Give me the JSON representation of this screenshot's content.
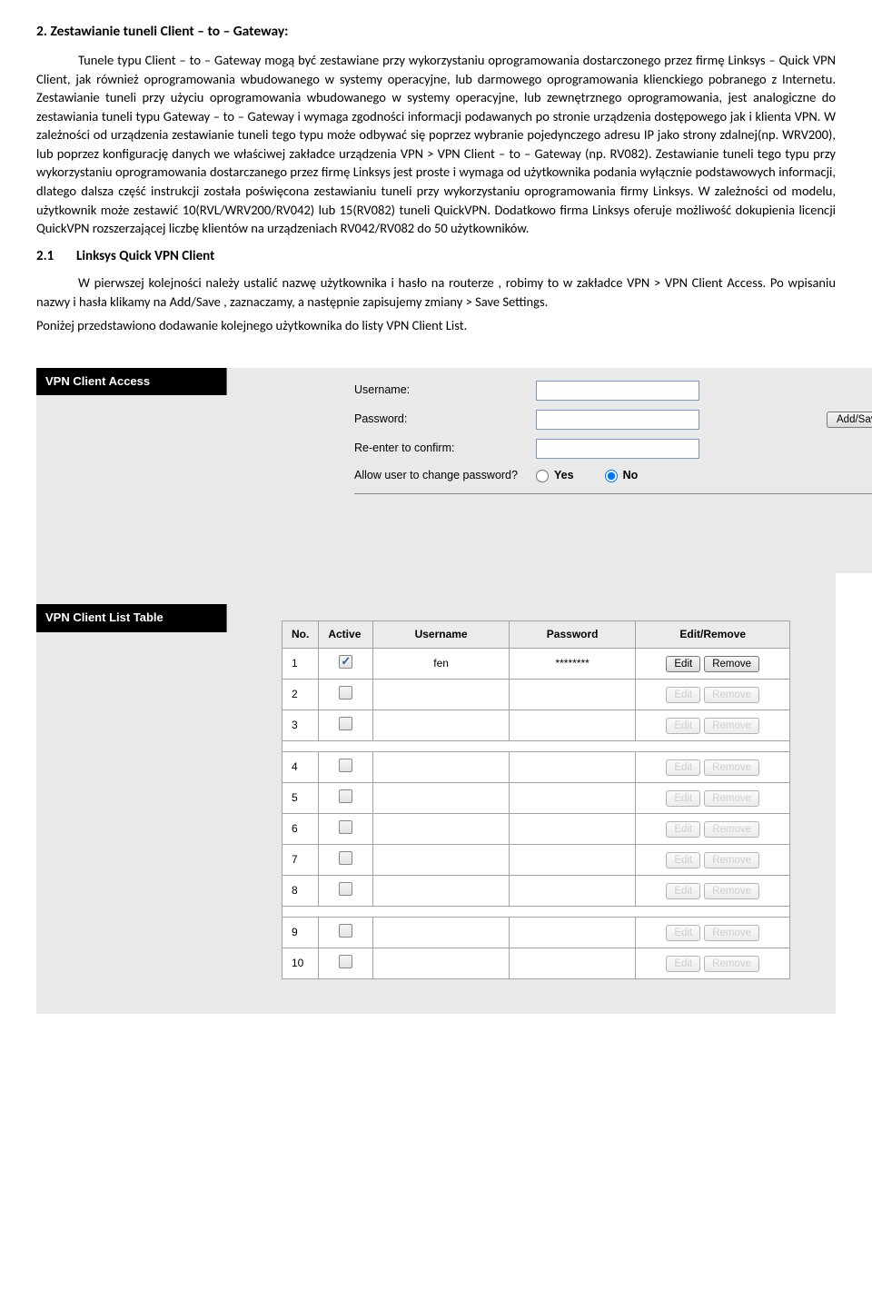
{
  "doc": {
    "heading_main": "2. Zestawianie tuneli Client – to – Gateway:",
    "para1": "Tunele typu Client – to – Gateway mogą być zestawiane przy wykorzystaniu oprogramowania dostarczonego przez firmę Linksys – Quick VPN Client, jak również oprogramowania wbudowanego w systemy operacyjne, lub darmowego oprogramowania klienckiego pobranego z Internetu. Zestawianie tuneli przy użyciu oprogramowania wbudowanego w systemy operacyjne, lub zewnętrznego oprogramowania, jest analogiczne do zestawiania tuneli typu Gateway – to – Gateway i wymaga zgodności informacji podawanych po stronie urządzenia dostępowego jak i klienta VPN. W zależności od urządzenia zestawianie tuneli tego typu może odbywać się poprzez wybranie pojedynczego adresu IP jako strony zdalnej(np. WRV200), lub poprzez konfigurację danych we właściwej zakładce urządzenia VPN > VPN Client – to – Gateway (np. RV082). Zestawianie tuneli tego typu przy wykorzystaniu oprogramowania dostarczanego przez firmę Linksys jest proste i wymaga od użytkownika podania wyłącznie podstawowych informacji, dlatego dalsza część instrukcji została poświęcona zestawianiu tuneli przy wykorzystaniu oprogramowania firmy Linksys. W zależności od modelu, użytkownik może zestawić 10(RVL/WRV200/RV042) lub 15(RV082) tuneli QuickVPN. Dodatkowo firma Linksys oferuje możliwość dokupienia licencji QuickVPN rozszerzającej liczbę klientów na urządzeniach RV042/RV082 do 50 użytkowników.",
    "sub_num": "2.1",
    "sub_title": "Linksys Quick VPN Client",
    "para2": "W pierwszej kolejności należy ustalić nazwę użytkownika i hasło na routerze , robimy to w zakładce VPN > VPN Client Access. Po wpisaniu nazwy i hasła klikamy na Add/Save , zaznaczamy, a następnie zapisujemy zmiany > Save Settings.",
    "para3": "Poniżej przedstawiono dodawanie kolejnego użytkownika do listy VPN Client List."
  },
  "ui": {
    "section1_title": "VPN Client Access",
    "section2_title": "VPN Client List Table",
    "form": {
      "username_label": "Username:",
      "password_label": "Password:",
      "reenter_label": "Re-enter to confirm:",
      "allow_label": "Allow user to change password?",
      "username_value": "",
      "password_value": "",
      "reenter_value": "",
      "yes_label": "Yes",
      "no_label": "No",
      "addsave_label": "Add/Save"
    },
    "table": {
      "headers": {
        "no": "No.",
        "active": "Active",
        "username": "Username",
        "password": "Password",
        "edit_remove": "Edit/Remove"
      },
      "edit_label": "Edit",
      "remove_label": "Remove",
      "rows": [
        {
          "no": "1",
          "active": true,
          "username": "fen",
          "password": "********",
          "enabled": true
        },
        {
          "no": "2",
          "active": false,
          "username": "",
          "password": "",
          "enabled": false
        },
        {
          "no": "3",
          "active": false,
          "username": "",
          "password": "",
          "enabled": false
        },
        {
          "no": "4",
          "active": false,
          "username": "",
          "password": "",
          "enabled": false
        },
        {
          "no": "5",
          "active": false,
          "username": "",
          "password": "",
          "enabled": false
        },
        {
          "no": "6",
          "active": false,
          "username": "",
          "password": "",
          "enabled": false
        },
        {
          "no": "7",
          "active": false,
          "username": "",
          "password": "",
          "enabled": false
        },
        {
          "no": "8",
          "active": false,
          "username": "",
          "password": "",
          "enabled": false
        },
        {
          "no": "9",
          "active": false,
          "username": "",
          "password": "",
          "enabled": false
        },
        {
          "no": "10",
          "active": false,
          "username": "",
          "password": "",
          "enabled": false
        }
      ]
    }
  },
  "colors": {
    "page_bg": "#ffffff",
    "text": "#000000",
    "panel_bg": "#e9e9e9",
    "header_bg": "#000000",
    "header_fg": "#ffffff",
    "border": "#a3a3a3",
    "input_border": "#7a9abf"
  }
}
